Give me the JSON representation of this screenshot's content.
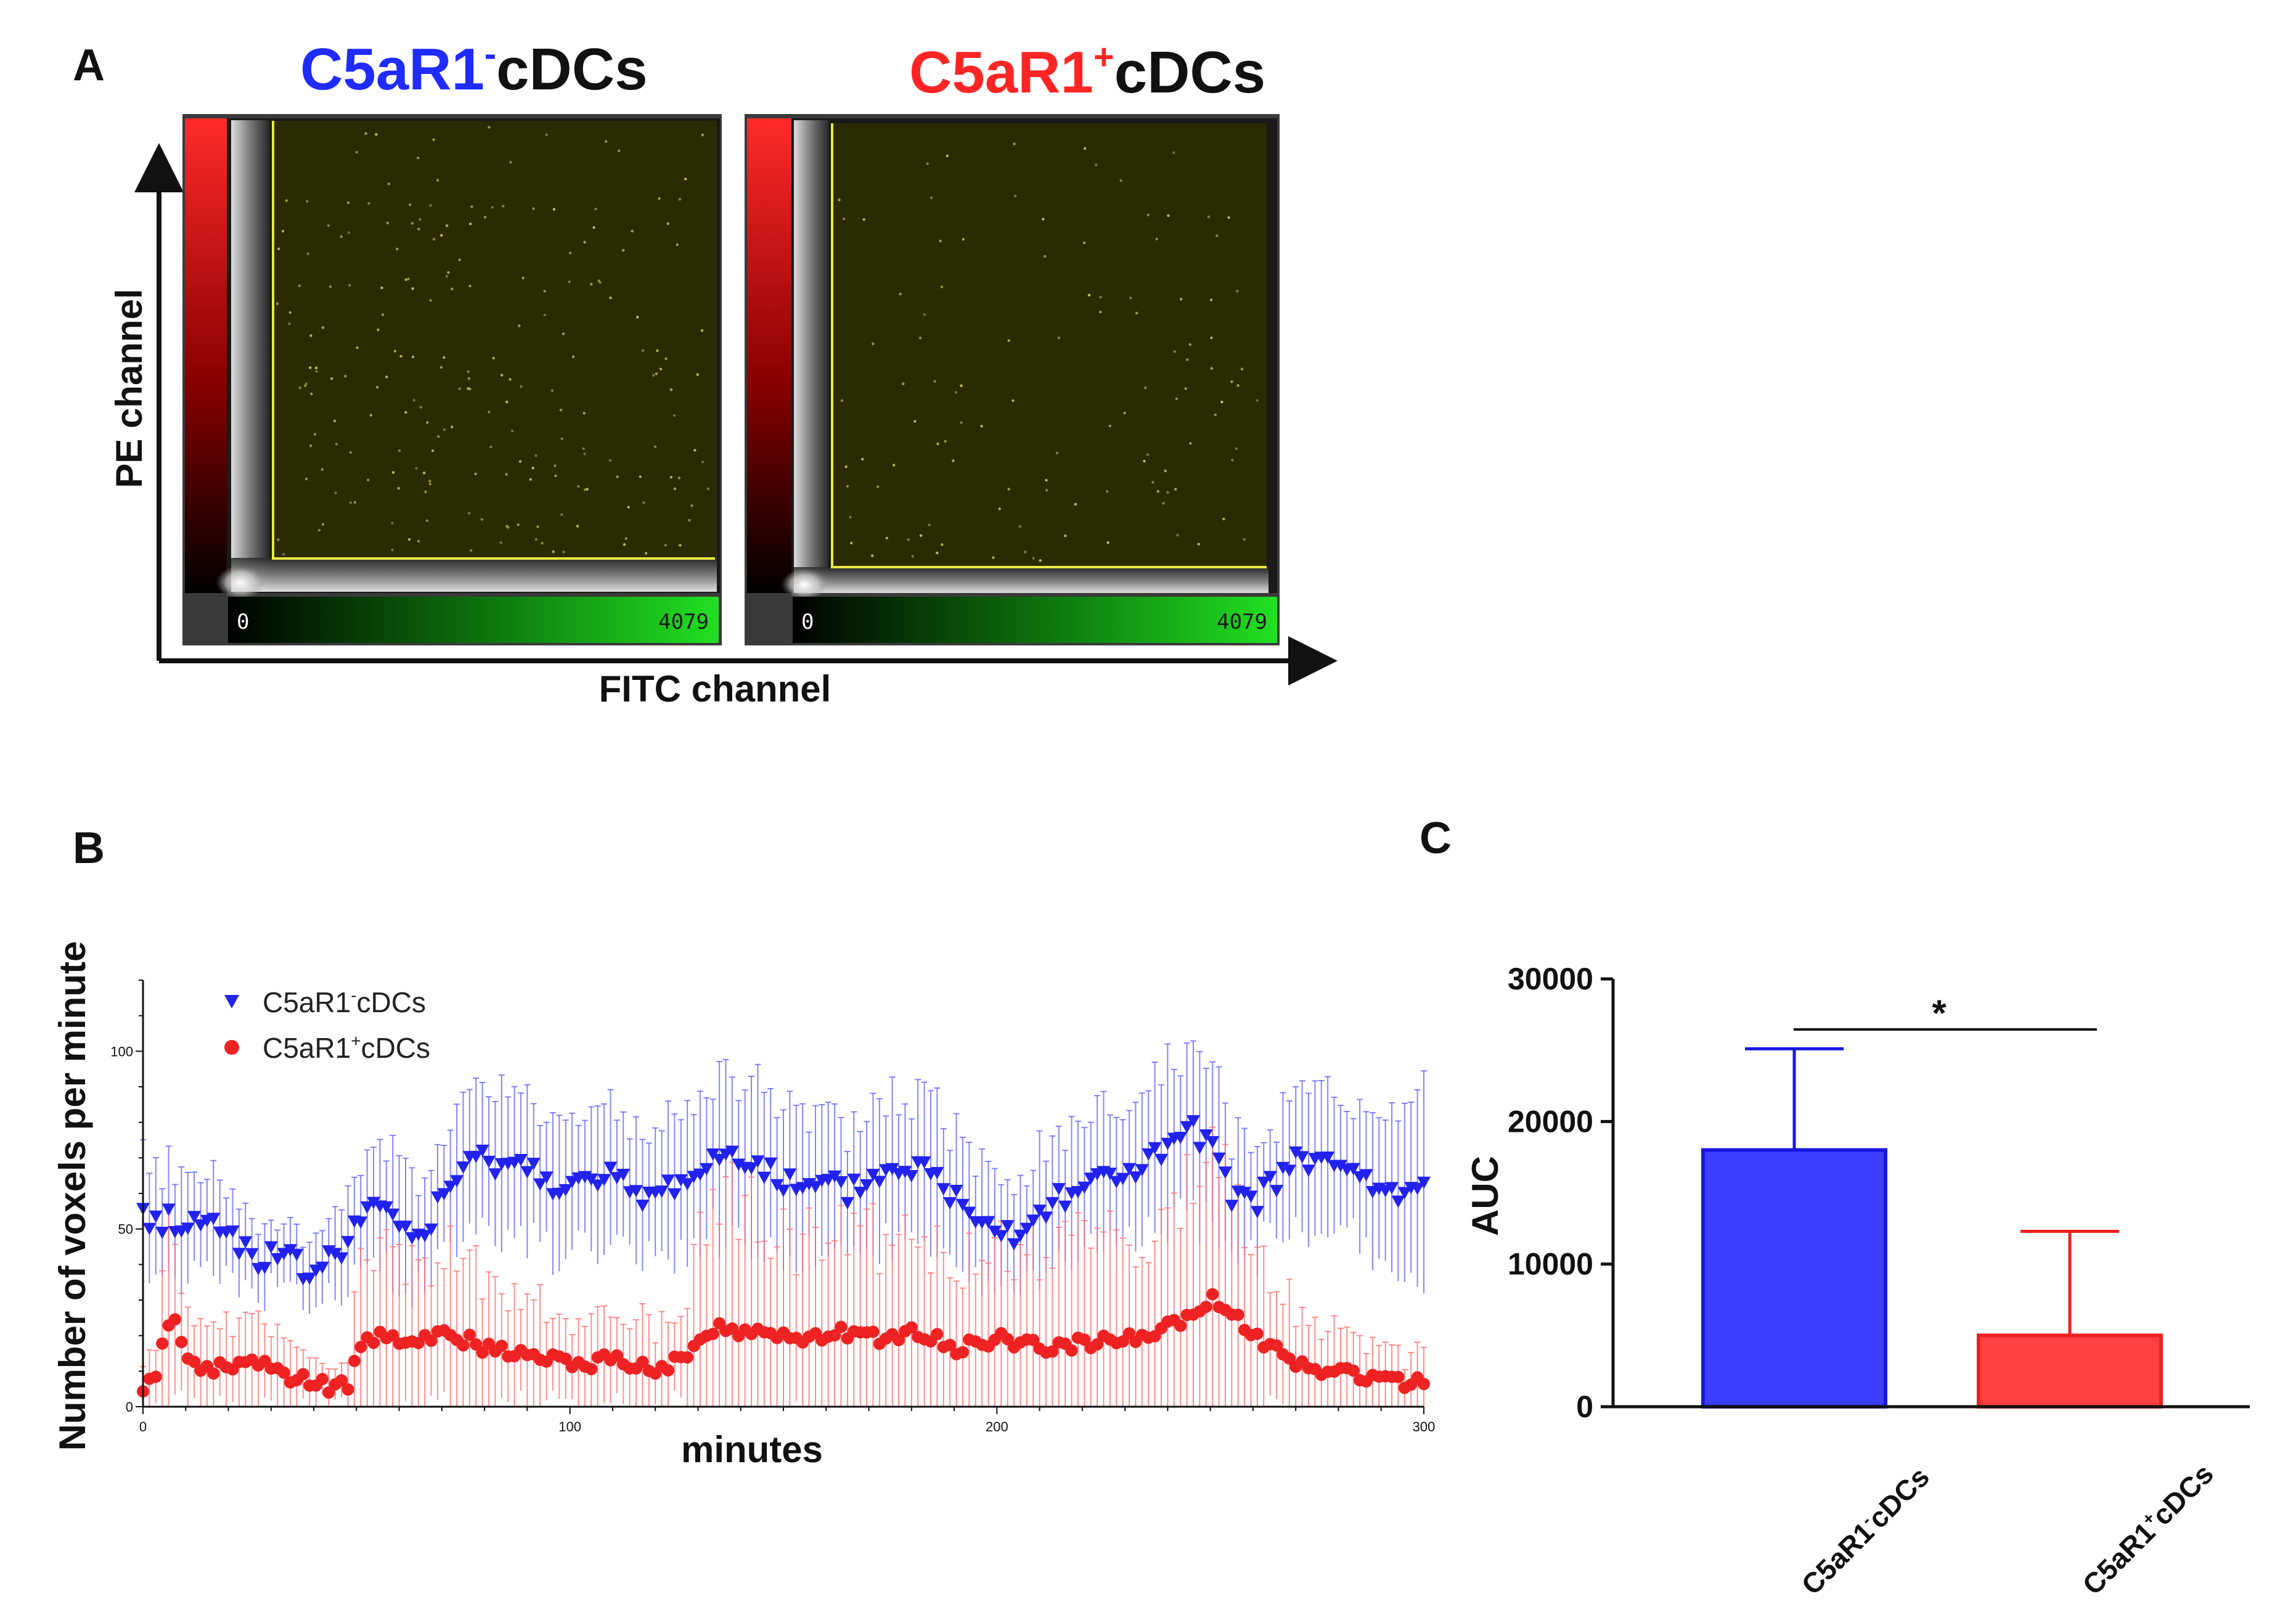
{
  "colors": {
    "negative": "#1f2bff",
    "positive": "#ff2525",
    "negative_bar": "#3d3dff",
    "positive_bar": "#ff4040",
    "gate": "#e8e840",
    "plot_bg": "#2b2b02"
  },
  "panel_a": {
    "label": "A",
    "left_title": {
      "main": "C5aR1",
      "sup": "-",
      "rest": "cDCs"
    },
    "right_title": {
      "main": "C5aR1",
      "sup": "+",
      "rest": "cDCs"
    },
    "y_axis_label": "PE channel",
    "x_axis_label": "FITC channel",
    "scale_min": "0",
    "scale_max": "4079"
  },
  "panel_b": {
    "label": "B",
    "x_title": "minutes",
    "y_title": "Number of voxels per minute"
  },
  "panel_c": {
    "label": "C",
    "y_title": "AUC",
    "significance": "*"
  },
  "chart_data": [
    {
      "type": "scatter",
      "panel": "B",
      "title": "",
      "xlabel": "minutes",
      "ylabel": "Number of voxels per minute",
      "xlim": [
        0,
        300
      ],
      "ylim": [
        0,
        120
      ],
      "x_ticks": [
        "0",
        "100",
        "200",
        "300"
      ],
      "y_ticks": [
        "0",
        "50",
        "100"
      ],
      "legend_position": "top-left",
      "series": [
        {
          "name": "C5aR1-cDCs",
          "label_main": "C5aR1",
          "label_sup": "-",
          "label_rest": "cDCs",
          "marker": "triangle-down",
          "color": "#2222ee",
          "keyframes_x": [
            0,
            10,
            20,
            25,
            30,
            35,
            40,
            45,
            50,
            55,
            60,
            65,
            70,
            75,
            80,
            85,
            90,
            95,
            100,
            105,
            110,
            115,
            120,
            125,
            130,
            135,
            140,
            145,
            150,
            155,
            160,
            165,
            170,
            175,
            180,
            185,
            190,
            195,
            200,
            205,
            210,
            215,
            220,
            225,
            230,
            235,
            240,
            245,
            250,
            255,
            260,
            265,
            270,
            275,
            280,
            285,
            290,
            295,
            300
          ],
          "keyframes_y": [
            53,
            52,
            50,
            43,
            42,
            40,
            38,
            42,
            52,
            55,
            52,
            47,
            58,
            66,
            70,
            69,
            67,
            64,
            63,
            62,
            64,
            60,
            59,
            63,
            66,
            70,
            72,
            68,
            63,
            60,
            62,
            60,
            64,
            66,
            68,
            65,
            59,
            55,
            52,
            48,
            55,
            60,
            62,
            64,
            66,
            68,
            72,
            78,
            72,
            60,
            58,
            62,
            70,
            68,
            67,
            65,
            60,
            58,
            66
          ],
          "error_keyframes": [
            15,
            15,
            12,
            10,
            10,
            8,
            10,
            12,
            15,
            15,
            18,
            15,
            18,
            20,
            20,
            20,
            20,
            20,
            20,
            18,
            18,
            18,
            18,
            18,
            20,
            22,
            22,
            22,
            20,
            18,
            18,
            18,
            18,
            20,
            20,
            20,
            18,
            18,
            15,
            15,
            18,
            18,
            18,
            18,
            20,
            20,
            22,
            24,
            22,
            18,
            15,
            15,
            18,
            18,
            18,
            18,
            20,
            20,
            25
          ]
        },
        {
          "name": "C5aR1+cDCs",
          "label_main": "C5aR1",
          "label_sup": "+",
          "label_rest": "cDCs",
          "marker": "circle",
          "color": "#ee2222",
          "keyframes_x": [
            0,
            3,
            5,
            8,
            10,
            15,
            20,
            25,
            30,
            35,
            40,
            45,
            48,
            50,
            55,
            60,
            65,
            70,
            75,
            80,
            90,
            100,
            110,
            120,
            125,
            128,
            130,
            135,
            140,
            145,
            150,
            155,
            160,
            165,
            170,
            175,
            180,
            185,
            190,
            195,
            200,
            205,
            210,
            220,
            230,
            240,
            245,
            250,
            255,
            260,
            265,
            270,
            280,
            290,
            295,
            300
          ],
          "keyframes_y": [
            6,
            8,
            20,
            24,
            14,
            10,
            12,
            14,
            10,
            8,
            7,
            5,
            6,
            16,
            20,
            19,
            20,
            21,
            19,
            17,
            14,
            12,
            13,
            11,
            13,
            12,
            20,
            22,
            21,
            22,
            20,
            19,
            20,
            21,
            19,
            20,
            21,
            20,
            16,
            18,
            19,
            18,
            17,
            18,
            19,
            22,
            26,
            30,
            27,
            20,
            16,
            12,
            10,
            7,
            7,
            8
          ],
          "error_keyframes": [
            6,
            10,
            26,
            30,
            14,
            12,
            15,
            15,
            12,
            10,
            8,
            6,
            8,
            22,
            25,
            25,
            25,
            26,
            24,
            20,
            18,
            14,
            14,
            12,
            14,
            14,
            34,
            40,
            36,
            34,
            30,
            28,
            30,
            30,
            28,
            28,
            28,
            24,
            22,
            24,
            26,
            26,
            26,
            28,
            28,
            34,
            38,
            42,
            36,
            26,
            20,
            16,
            12,
            10,
            8,
            8
          ]
        }
      ]
    },
    {
      "type": "bar",
      "panel": "C",
      "title": "",
      "xlabel": "",
      "ylabel": "AUC",
      "ylim": [
        0,
        30000
      ],
      "y_ticks": [
        "0",
        "10000",
        "20000",
        "30000"
      ],
      "categories": [
        {
          "main": "C5aR1",
          "sup": "-",
          "rest": "cDCs"
        },
        {
          "main": "C5aR1",
          "sup": "+",
          "rest": "cDCs"
        }
      ],
      "values": [
        18000,
        5000
      ],
      "error_upper": [
        25100,
        12300
      ],
      "significance": "*"
    }
  ]
}
